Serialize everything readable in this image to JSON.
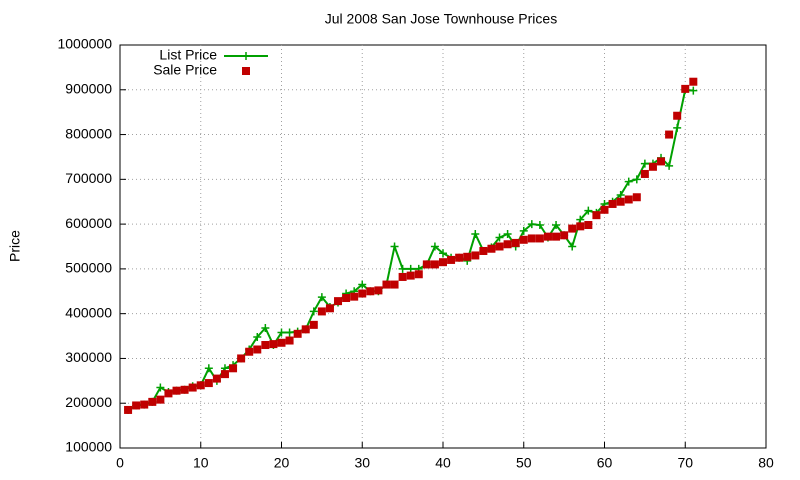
{
  "chart_data": {
    "type": "line",
    "title": "Jul 2008 San Jose Townhouse Prices",
    "y_label": "Price",
    "x": [
      1,
      2,
      3,
      4,
      5,
      6,
      7,
      8,
      9,
      10,
      11,
      12,
      13,
      14,
      15,
      16,
      17,
      18,
      19,
      20,
      21,
      22,
      23,
      24,
      25,
      26,
      27,
      28,
      29,
      30,
      31,
      32,
      33,
      34,
      35,
      36,
      37,
      38,
      39,
      40,
      41,
      42,
      43,
      44,
      45,
      46,
      47,
      48,
      49,
      50,
      51,
      52,
      53,
      54,
      55,
      56,
      57,
      58,
      59,
      60,
      61,
      62,
      63,
      64,
      65,
      66,
      67,
      68,
      69,
      70,
      71
    ],
    "series": [
      {
        "name": "List Price",
        "color": "#00a000",
        "marker": "plus",
        "line": true,
        "values": [
          185000,
          195000,
          197000,
          203000,
          235000,
          225000,
          228000,
          230000,
          238000,
          240000,
          278000,
          250000,
          278000,
          285000,
          300000,
          320000,
          348000,
          368000,
          330000,
          358000,
          358000,
          360000,
          365000,
          405000,
          437000,
          415000,
          425000,
          445000,
          450000,
          465000,
          450000,
          450000,
          465000,
          550000,
          500000,
          500000,
          500000,
          510000,
          550000,
          535000,
          525000,
          525000,
          518000,
          578000,
          540000,
          548000,
          570000,
          578000,
          550000,
          585000,
          600000,
          598000,
          570000,
          598000,
          575000,
          550000,
          610000,
          630000,
          625000,
          645000,
          650000,
          665000,
          695000,
          700000,
          735000,
          735000,
          748000,
          730000,
          815000,
          900000,
          898000
        ]
      },
      {
        "name": "Sale Price",
        "color": "#c00000",
        "marker": "square",
        "line": false,
        "values": [
          185000,
          195000,
          197000,
          203000,
          208000,
          222000,
          228000,
          230000,
          235000,
          240000,
          245000,
          255000,
          265000,
          278000,
          300000,
          315000,
          320000,
          330000,
          332000,
          335000,
          340000,
          355000,
          365000,
          375000,
          405000,
          412000,
          428000,
          435000,
          438000,
          445000,
          450000,
          452000,
          465000,
          465000,
          482000,
          485000,
          488000,
          510000,
          510000,
          515000,
          520000,
          525000,
          527000,
          530000,
          540000,
          545000,
          550000,
          555000,
          558000,
          565000,
          568000,
          568000,
          572000,
          572000,
          575000,
          590000,
          595000,
          598000,
          620000,
          632000,
          645000,
          650000,
          655000,
          660000,
          712000,
          728000,
          740000,
          800000,
          842000,
          902000,
          918000
        ]
      }
    ],
    "xlim": [
      0,
      80
    ],
    "xticks": [
      0,
      10,
      20,
      30,
      40,
      50,
      60,
      70,
      80
    ],
    "ylim": [
      100000,
      1000000
    ],
    "yticks": [
      100000,
      200000,
      300000,
      400000,
      500000,
      600000,
      700000,
      800000,
      900000,
      1000000
    ],
    "grid": true,
    "legend": "upper left"
  }
}
